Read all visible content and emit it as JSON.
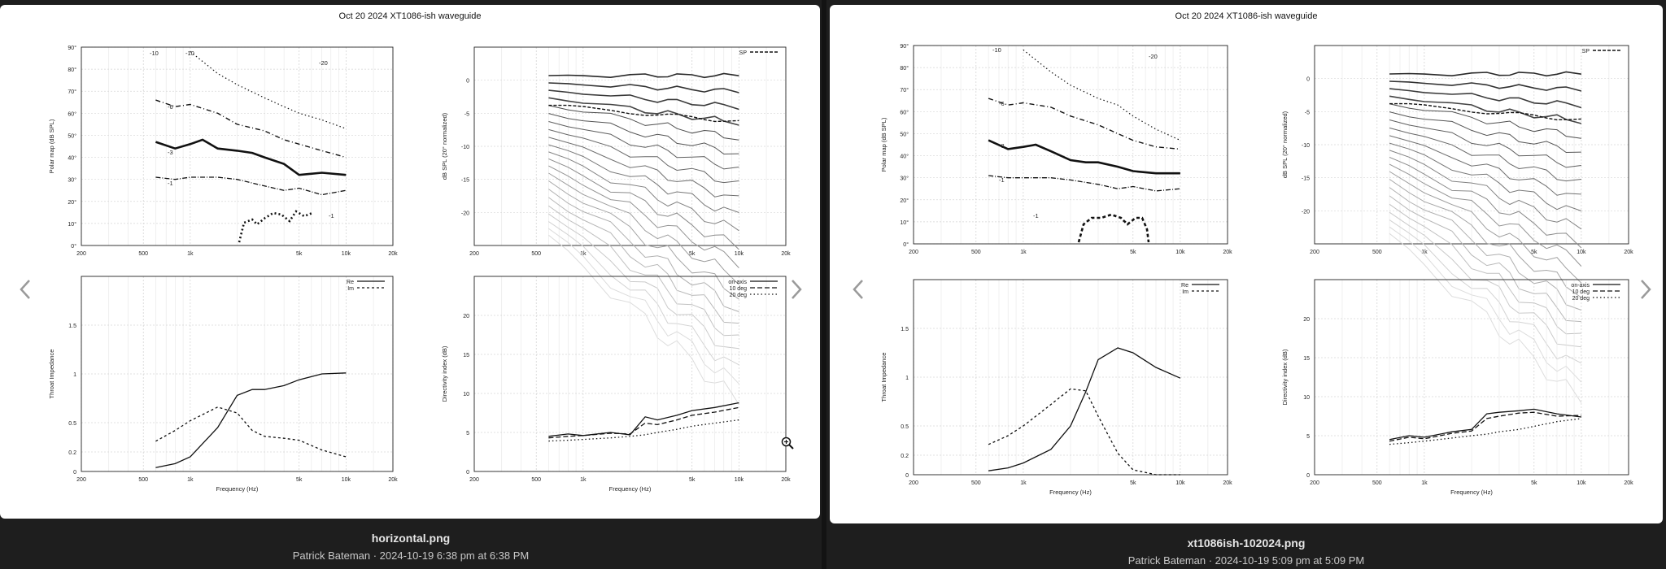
{
  "viewers": [
    {
      "caption": {
        "filename": "horizontal.png",
        "meta": "Patrick Bateman · 2024-10-19 6:38 pm at 6:38 PM"
      },
      "image_title": "Oct 20 2024 XT1086-ish waveguide"
    },
    {
      "caption": {
        "filename": "xt1086ish-102024.png",
        "meta": "Patrick Bateman · 2024-10-19 5:09 pm at 5:09 PM"
      },
      "image_title": "Oct 20 2024 XT1086-ish waveguide"
    }
  ],
  "nav": {
    "prev_icon": "chevron-left-icon",
    "next_icon": "chevron-right-icon",
    "zoom_icon": "magnifier-plus-icon"
  },
  "chart_data": [
    {
      "type": "line",
      "panel": "polar-map",
      "ylabel": "Polar map (dB SPL)",
      "x_ticks": [
        "200",
        "500",
        "1k",
        "5k",
        "10k",
        "20k"
      ],
      "y_ticks": [
        "0°",
        "10°",
        "20°",
        "30°",
        "40°",
        "50°",
        "60°",
        "70°",
        "80°",
        "90°"
      ],
      "contour_labels": [
        "-10",
        "-10",
        "-20",
        "-6",
        "-3",
        "-1",
        "-1"
      ],
      "series": [
        {
          "name": "-1",
          "x": [
            600,
            800,
            1000,
            1500,
            2000,
            3000,
            4000,
            5000,
            7000,
            10000
          ],
          "values": [
            31,
            30,
            31,
            31,
            30,
            27,
            25,
            26,
            23,
            25
          ]
        },
        {
          "name": "-3",
          "x": [
            600,
            800,
            1000,
            1200,
            1500,
            2000,
            2500,
            3000,
            4000,
            5000,
            7000,
            10000
          ],
          "values": [
            47,
            44,
            46,
            48,
            44,
            43,
            42,
            40,
            37,
            32,
            33,
            32
          ]
        },
        {
          "name": "-6",
          "x": [
            600,
            800,
            1000,
            1500,
            2000,
            3000,
            4000,
            5000,
            7000,
            10000
          ],
          "values": [
            66,
            63,
            64,
            60,
            55,
            52,
            48,
            46,
            43,
            40
          ]
        },
        {
          "name": "-10",
          "x": [
            1000,
            1500,
            2000,
            3000,
            4000,
            5000,
            7000,
            10000
          ],
          "values": [
            88,
            78,
            73,
            67,
            63,
            60,
            57,
            53
          ]
        }
      ]
    },
    {
      "type": "line",
      "panel": "normalized-spl",
      "ylabel": "dB SPL (20° normalized)",
      "legend": [
        "SP"
      ],
      "x_ticks": [
        "200",
        "500",
        "1k",
        "5k",
        "10k",
        "20k"
      ],
      "y_ticks": [
        "0",
        "-5",
        "-10",
        "-15",
        "-20"
      ],
      "ylim": [
        -25,
        5
      ]
    },
    {
      "type": "line",
      "panel": "throat-impedance",
      "ylabel": "Throat Impedance",
      "xlabel": "Frequency (Hz)",
      "legend": [
        "Re",
        "Im"
      ],
      "x_ticks": [
        "200",
        "500",
        "1k",
        "5k",
        "10k",
        "20k"
      ],
      "y_ticks": [
        "0",
        "0.2",
        "0.5",
        "1",
        "1.5"
      ],
      "ylim": [
        0,
        2
      ],
      "series": [
        {
          "name": "Re",
          "x": [
            600,
            800,
            1000,
            1500,
            2000,
            2500,
            3000,
            4000,
            5000,
            7000,
            10000
          ],
          "values": [
            0.04,
            0.08,
            0.15,
            0.45,
            0.78,
            0.84,
            0.84,
            0.88,
            0.94,
            1.0,
            1.01
          ]
        },
        {
          "name": "Im",
          "x": [
            600,
            800,
            1000,
            1500,
            2000,
            2500,
            3000,
            4000,
            5000,
            7000,
            10000
          ],
          "values": [
            0.31,
            0.42,
            0.52,
            0.66,
            0.6,
            0.42,
            0.36,
            0.34,
            0.32,
            0.22,
            0.15
          ]
        }
      ]
    },
    {
      "type": "line",
      "panel": "directivity-index",
      "ylabel": "Directivity index (dB)",
      "xlabel": "Frequency (Hz)",
      "legend": [
        "on-axis",
        "10 deg",
        "20 deg"
      ],
      "x_ticks": [
        "200",
        "500",
        "1k",
        "5k",
        "10k",
        "20k"
      ],
      "y_ticks": [
        "0",
        "5",
        "10",
        "15",
        "20"
      ],
      "ylim": [
        0,
        25
      ],
      "series": [
        {
          "name": "on-axis",
          "x": [
            600,
            800,
            1000,
            1500,
            2000,
            2500,
            3000,
            4000,
            5000,
            7000,
            10000
          ],
          "values": [
            4.5,
            4.8,
            4.6,
            5.0,
            4.7,
            7.0,
            6.6,
            7.2,
            7.8,
            8.2,
            8.8
          ]
        },
        {
          "name": "10 deg",
          "x": [
            600,
            800,
            1000,
            1500,
            2000,
            2500,
            3000,
            4000,
            5000,
            7000,
            10000
          ],
          "values": [
            4.3,
            4.5,
            4.6,
            4.9,
            4.8,
            6.2,
            6.0,
            6.6,
            7.2,
            7.6,
            8.2
          ]
        },
        {
          "name": "20 deg",
          "x": [
            600,
            800,
            1000,
            1500,
            2000,
            2500,
            3000,
            4000,
            5000,
            7000,
            10000
          ],
          "values": [
            3.9,
            4.0,
            4.1,
            4.3,
            4.5,
            4.7,
            5.0,
            5.4,
            5.8,
            6.2,
            6.6
          ]
        }
      ]
    },
    {
      "type": "line",
      "panel": "polar-map-2",
      "ylabel": "Polar map (dB SPL)",
      "x_ticks": [
        "200",
        "500",
        "1k",
        "5k",
        "10k",
        "20k"
      ],
      "y_ticks": [
        "0°",
        "10°",
        "20°",
        "30°",
        "40°",
        "50°",
        "60°",
        "70°",
        "80°",
        "90°"
      ],
      "contour_labels": [
        "-10",
        "-20",
        "-6",
        "-3",
        "-1",
        "-1"
      ],
      "series": [
        {
          "name": "-1",
          "x": [
            600,
            800,
            1000,
            1500,
            2000,
            3000,
            4000,
            5000,
            7000,
            10000
          ],
          "values": [
            31,
            30,
            30,
            30,
            29,
            27,
            25,
            26,
            24,
            25
          ]
        },
        {
          "name": "-3",
          "x": [
            600,
            800,
            1000,
            1200,
            1500,
            2000,
            2500,
            3000,
            4000,
            5000,
            7000,
            10000
          ],
          "values": [
            47,
            43,
            44,
            45,
            42,
            38,
            37,
            37,
            35,
            33,
            32,
            32
          ]
        },
        {
          "name": "-6",
          "x": [
            600,
            800,
            1000,
            1500,
            2000,
            3000,
            4000,
            5000,
            7000,
            10000
          ],
          "values": [
            66,
            63,
            64,
            62,
            58,
            54,
            50,
            47,
            44,
            43
          ]
        },
        {
          "name": "-10",
          "x": [
            1000,
            1500,
            2000,
            3000,
            4000,
            5000,
            7000,
            10000
          ],
          "values": [
            88,
            78,
            72,
            66,
            63,
            58,
            52,
            47
          ]
        }
      ]
    },
    {
      "type": "line",
      "panel": "normalized-spl-2",
      "ylabel": "dB SPL (20° normalized)",
      "legend": [
        "SP"
      ],
      "x_ticks": [
        "200",
        "500",
        "1k",
        "5k",
        "10k",
        "20k"
      ],
      "y_ticks": [
        "0",
        "-5",
        "-10",
        "-15",
        "-20"
      ],
      "ylim": [
        -25,
        5
      ]
    },
    {
      "type": "line",
      "panel": "throat-impedance-2",
      "ylabel": "Throat Impedance",
      "xlabel": "Frequency (Hz)",
      "legend": [
        "Re",
        "Im"
      ],
      "x_ticks": [
        "200",
        "500",
        "1k",
        "5k",
        "10k",
        "20k"
      ],
      "y_ticks": [
        "0",
        "0.2",
        "0.5",
        "1",
        "1.5"
      ],
      "ylim": [
        0,
        2
      ],
      "series": [
        {
          "name": "Re",
          "x": [
            600,
            800,
            1000,
            1500,
            2000,
            2500,
            3000,
            4000,
            5000,
            7000,
            10000
          ],
          "values": [
            0.04,
            0.07,
            0.12,
            0.26,
            0.5,
            0.85,
            1.18,
            1.3,
            1.25,
            1.1,
            0.99
          ]
        },
        {
          "name": "Im",
          "x": [
            600,
            800,
            1000,
            1500,
            2000,
            2500,
            3000,
            4000,
            5000,
            7000,
            10000
          ],
          "values": [
            0.31,
            0.4,
            0.5,
            0.72,
            0.88,
            0.86,
            0.6,
            0.22,
            0.05,
            0.0,
            0.0
          ]
        }
      ]
    },
    {
      "type": "line",
      "panel": "directivity-index-2",
      "ylabel": "Directivity index (dB)",
      "xlabel": "Frequency (Hz)",
      "legend": [
        "on-axis",
        "10 deg",
        "20 deg"
      ],
      "x_ticks": [
        "200",
        "500",
        "1k",
        "5k",
        "10k",
        "20k"
      ],
      "y_ticks": [
        "0",
        "5",
        "10",
        "15",
        "20"
      ],
      "ylim": [
        0,
        25
      ],
      "series": [
        {
          "name": "on-axis",
          "x": [
            600,
            800,
            1000,
            1500,
            2000,
            2500,
            3000,
            4000,
            5000,
            7000,
            10000
          ],
          "values": [
            4.5,
            5.0,
            4.8,
            5.5,
            5.8,
            7.8,
            8.0,
            8.2,
            8.4,
            7.8,
            7.4
          ]
        },
        {
          "name": "10 deg",
          "x": [
            600,
            800,
            1000,
            1500,
            2000,
            2500,
            3000,
            4000,
            5000,
            7000,
            10000
          ],
          "values": [
            4.3,
            4.8,
            4.6,
            5.3,
            5.6,
            7.2,
            7.5,
            7.9,
            8.0,
            7.5,
            7.6
          ]
        },
        {
          "name": "20 deg",
          "x": [
            600,
            800,
            1000,
            1500,
            2000,
            2500,
            3000,
            4000,
            5000,
            7000,
            10000
          ],
          "values": [
            3.9,
            4.1,
            4.3,
            4.7,
            5.0,
            5.2,
            5.5,
            5.8,
            6.2,
            6.8,
            7.2
          ]
        }
      ]
    }
  ]
}
